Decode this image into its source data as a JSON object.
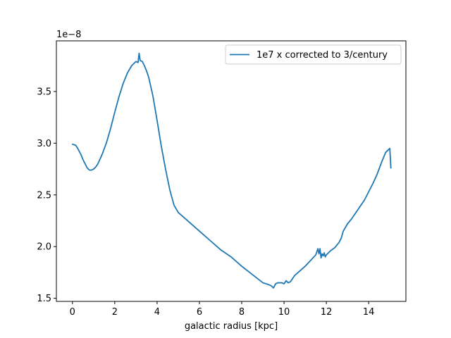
{
  "chart_data": {
    "type": "line",
    "title": "",
    "xlabel": "galactic radius [kpc]",
    "ylabel": "",
    "y_offset_label": "1e−8",
    "xlim": [
      -0.76,
      15.76
    ],
    "ylim": [
      1.47,
      3.99
    ],
    "x_ticks": [
      0,
      2,
      4,
      6,
      8,
      10,
      12,
      14
    ],
    "x_tick_labels": [
      "0",
      "2",
      "4",
      "6",
      "8",
      "10",
      "12",
      "14"
    ],
    "y_ticks": [
      1.5,
      2.0,
      2.5,
      3.0,
      3.5
    ],
    "y_tick_labels": [
      "1.5",
      "2.0",
      "2.5",
      "3.0",
      "3.5"
    ],
    "grid": false,
    "legend_position": "upper right",
    "series_color": "#1f77b4",
    "series": [
      {
        "name": "1e7 x corrected to 3/century",
        "x": [
          0.0,
          0.15,
          0.25,
          0.4,
          0.5,
          0.6,
          0.7,
          0.8,
          0.9,
          1.0,
          1.1,
          1.2,
          1.4,
          1.6,
          1.8,
          2.0,
          2.2,
          2.4,
          2.6,
          2.8,
          3.0,
          3.1,
          3.15,
          3.2,
          3.3,
          3.4,
          3.5,
          3.6,
          3.8,
          4.0,
          4.2,
          4.4,
          4.6,
          4.8,
          5.0,
          5.5,
          6.0,
          6.5,
          7.0,
          7.5,
          8.0,
          8.5,
          9.0,
          9.3,
          9.4,
          9.5,
          9.6,
          9.7,
          9.9,
          10.0,
          10.1,
          10.2,
          10.3,
          10.5,
          11.0,
          11.5,
          11.6,
          11.65,
          11.7,
          11.75,
          11.8,
          11.85,
          11.9,
          11.95,
          12.0,
          12.1,
          12.2,
          12.4,
          12.6,
          12.7,
          12.8,
          13.0,
          13.2,
          13.4,
          13.6,
          13.8,
          14.0,
          14.2,
          14.4,
          14.6,
          14.8,
          15.0,
          15.05
        ],
        "y": [
          2.99,
          2.98,
          2.95,
          2.89,
          2.84,
          2.8,
          2.76,
          2.74,
          2.74,
          2.75,
          2.77,
          2.8,
          2.89,
          3.0,
          3.14,
          3.3,
          3.45,
          3.58,
          3.68,
          3.75,
          3.79,
          3.78,
          3.87,
          3.8,
          3.79,
          3.75,
          3.7,
          3.64,
          3.46,
          3.22,
          2.97,
          2.75,
          2.55,
          2.4,
          2.33,
          2.24,
          2.15,
          2.06,
          1.97,
          1.9,
          1.81,
          1.73,
          1.65,
          1.63,
          1.62,
          1.6,
          1.64,
          1.65,
          1.65,
          1.64,
          1.67,
          1.65,
          1.66,
          1.72,
          1.81,
          1.92,
          1.98,
          1.93,
          1.98,
          1.89,
          1.93,
          1.91,
          1.94,
          1.9,
          1.92,
          1.94,
          1.96,
          1.99,
          2.04,
          2.08,
          2.15,
          2.22,
          2.27,
          2.33,
          2.39,
          2.45,
          2.53,
          2.61,
          2.7,
          2.81,
          2.91,
          2.95,
          2.76
        ]
      }
    ]
  }
}
